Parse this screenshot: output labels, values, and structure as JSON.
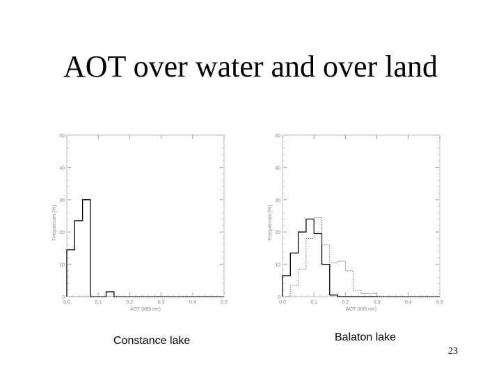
{
  "slide": {
    "title": "AOT over water and over land",
    "page_number": "23"
  },
  "captions": {
    "left": "Constance lake",
    "right": "Balaton lake"
  },
  "chart_data": [
    {
      "type": "histogram",
      "caption": "Constance lake",
      "xlabel": "AOT (865 nm)",
      "ylabel": "Frequencies [%]",
      "xlim": [
        0.0,
        0.5
      ],
      "ylim": [
        0,
        50
      ],
      "xticks": [
        "0.0",
        "0.1",
        "0.2",
        "0.3",
        "0.4",
        "0.5"
      ],
      "yticks": [
        "0",
        "10",
        "20",
        "30",
        "40",
        "50"
      ],
      "bin_width": 0.025,
      "series": [
        {
          "style": "solid",
          "bin_start": 0.0,
          "values": [
            14.5,
            23.5,
            30,
            0,
            0,
            1.5,
            0,
            0,
            0,
            0,
            0,
            0,
            0,
            0,
            0,
            0,
            0,
            0,
            0,
            0
          ]
        },
        {
          "style": "dotted",
          "bin_start": 0.0,
          "values": [
            0,
            0,
            0,
            0,
            0,
            0,
            0,
            0,
            0,
            0,
            0,
            0,
            0,
            0,
            0,
            0,
            0,
            0,
            0,
            0
          ]
        }
      ]
    },
    {
      "type": "histogram",
      "caption": "Balaton lake",
      "xlabel": "AOT (865 nm)",
      "ylabel": "Frequencies [%]",
      "xlim": [
        0.0,
        0.5
      ],
      "ylim": [
        0,
        50
      ],
      "xticks": [
        "0.0",
        "0.1",
        "0.2",
        "0.3",
        "0.4",
        "0.5"
      ],
      "yticks": [
        "0",
        "10",
        "20",
        "30",
        "40",
        "50"
      ],
      "bin_width": 0.025,
      "series": [
        {
          "style": "solid",
          "bin_start": 0.0,
          "values": [
            6.5,
            13.5,
            20,
            24,
            19.5,
            10,
            0.5,
            0,
            0,
            0,
            0,
            0,
            0,
            0,
            0,
            0,
            0,
            0,
            0,
            0
          ]
        },
        {
          "style": "dotted",
          "bin_start": 0.0,
          "values": [
            0,
            3.5,
            8.5,
            18,
            24.5,
            16,
            10.5,
            11,
            8,
            2,
            1,
            1,
            0,
            0,
            0,
            0,
            0,
            0,
            0,
            0
          ]
        }
      ]
    }
  ]
}
